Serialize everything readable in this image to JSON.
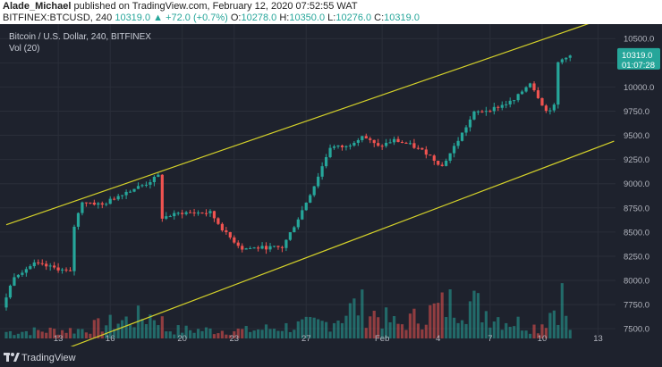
{
  "header": {
    "author": "Alade_Michael",
    "published": " published on TradingView.com, February 12, 2020 07:52:55 WAT",
    "symbol": "BITFINEX:BTCUSD, 240",
    "change": "10319.0 ▲ +72.0 (+0.7%)",
    "o_label": "O:",
    "o_value": "10278.0",
    "h_label": "H:",
    "h_value": "10350.0",
    "l_label": "L:",
    "l_value": "10276.0",
    "c_label": "C:",
    "c_value": "10319.0"
  },
  "legend": {
    "title": "Bitcoin / U.S. Dollar, 240, BITFINEX",
    "volume": "Vol (20)"
  },
  "footer": {
    "brand": "TradingView"
  },
  "colors": {
    "up": "#26a69a",
    "down": "#ef5350",
    "channel": "#d4d12a",
    "background": "#1e222d",
    "grid": "#2a2e39"
  },
  "chart_data": {
    "type": "candlestick",
    "symbol": "BITFINEX:BTCUSD",
    "timeframe": "240",
    "ylim": [
      7400,
      10650
    ],
    "y_ticks": [
      7500,
      7750,
      8000,
      8250,
      8500,
      8750,
      9000,
      9250,
      9500,
      9750,
      10000,
      10250,
      10500
    ],
    "y_tick_labels": [
      "7500.0",
      "7750.0",
      "8000.0",
      "8250.0",
      "8500.0",
      "8750.0",
      "9000.0",
      "9250.0",
      "9500.0",
      "9750.0",
      "10000.0",
      "10250.0",
      "10500.0"
    ],
    "x_ticks": [
      "13",
      "16",
      "20",
      "23",
      "27",
      "Feb",
      "4",
      "7",
      "10",
      "13"
    ],
    "last_price_label": "10319.0",
    "countdown_label": "01:07:28",
    "price_path": [
      [
        0,
        7720
      ],
      [
        3,
        8050
      ],
      [
        8,
        8170
      ],
      [
        14,
        8120
      ],
      [
        17,
        8080
      ],
      [
        18,
        8560
      ],
      [
        20,
        8820
      ],
      [
        25,
        8780
      ],
      [
        30,
        8900
      ],
      [
        36,
        9000
      ],
      [
        39,
        9080
      ],
      [
        40,
        8650
      ],
      [
        45,
        8700
      ],
      [
        52,
        8700
      ],
      [
        56,
        8480
      ],
      [
        60,
        8330
      ],
      [
        66,
        8340
      ],
      [
        70,
        8340
      ],
      [
        74,
        8640
      ],
      [
        78,
        8980
      ],
      [
        82,
        9380
      ],
      [
        86,
        9380
      ],
      [
        90,
        9500
      ],
      [
        94,
        9380
      ],
      [
        98,
        9450
      ],
      [
        102,
        9400
      ],
      [
        106,
        9320
      ],
      [
        110,
        9180
      ],
      [
        114,
        9450
      ],
      [
        118,
        9730
      ],
      [
        123,
        9780
      ],
      [
        128,
        9860
      ],
      [
        132,
        10050
      ],
      [
        134,
        9900
      ],
      [
        136,
        9750
      ],
      [
        138,
        9800
      ],
      [
        139,
        10250
      ],
      [
        141,
        10319
      ]
    ],
    "volume_path": [
      [
        0,
        0.15
      ],
      [
        18,
        0.2
      ],
      [
        38,
        0.55
      ],
      [
        40,
        0.2
      ],
      [
        60,
        0.18
      ],
      [
        80,
        0.35
      ],
      [
        88,
        0.75
      ],
      [
        98,
        0.3
      ],
      [
        114,
        0.9
      ],
      [
        124,
        0.45
      ],
      [
        133,
        0.25
      ],
      [
        139,
        0.95
      ],
      [
        141,
        0.15
      ]
    ],
    "channel_lines": [
      {
        "name": "upper",
        "from": [
          0,
          8575
        ],
        "to": [
          146,
          10660
        ]
      },
      {
        "name": "lower",
        "from": [
          0,
          7060
        ],
        "to": [
          152,
          9440
        ]
      }
    ],
    "grid": true
  }
}
